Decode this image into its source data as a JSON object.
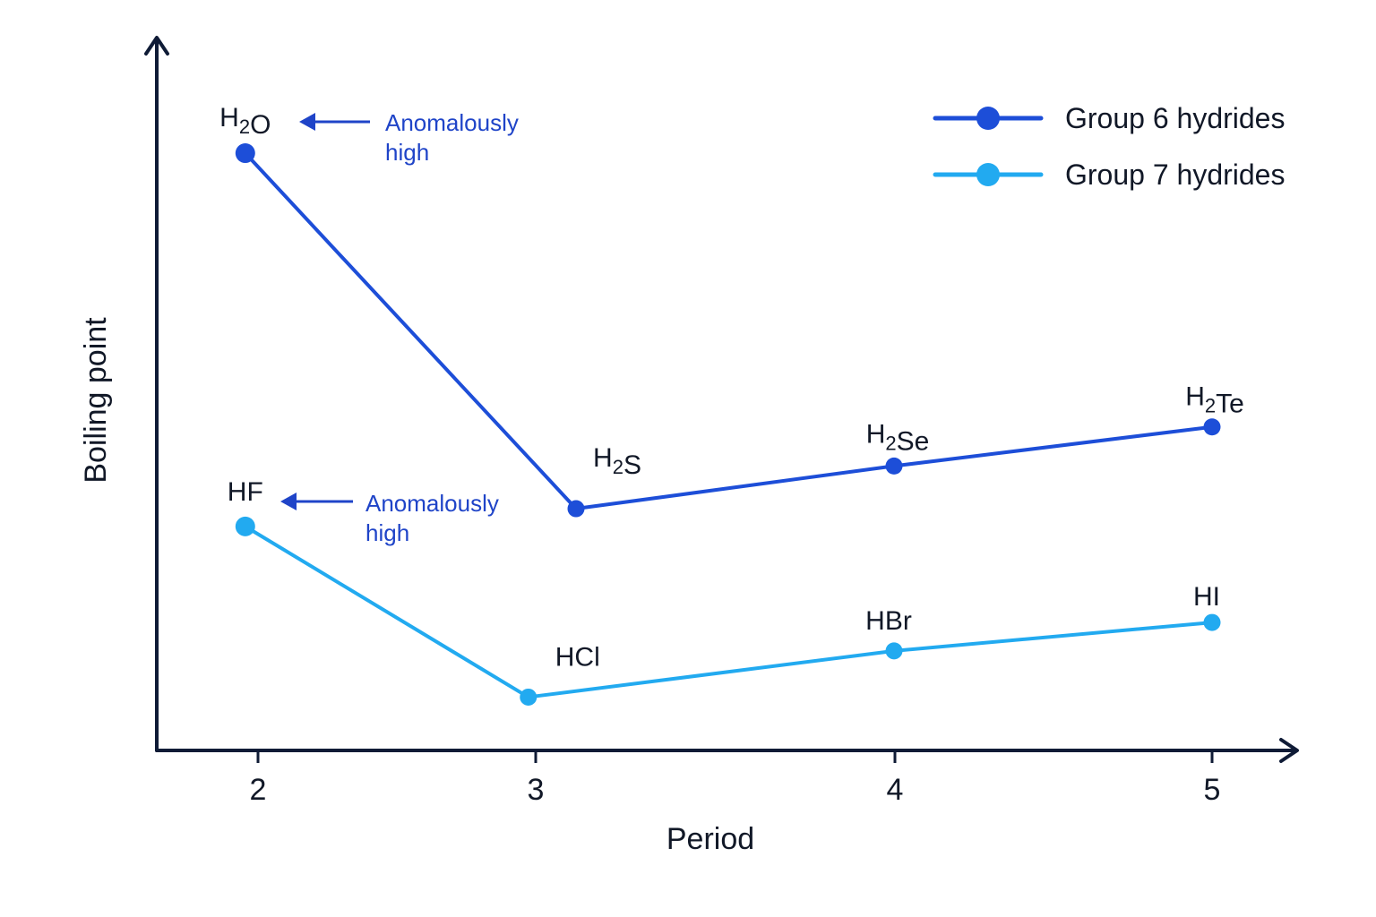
{
  "chart_data": {
    "type": "line",
    "xlabel": "Period",
    "ylabel": "Boiling point",
    "x_ticks": [
      "2",
      "3",
      "4",
      "5"
    ],
    "xlim": [
      1.65,
      5.3
    ],
    "ylim": [
      0,
      100
    ],
    "grid": false,
    "legend_position": "top-right",
    "series": [
      {
        "name": "Group 6 hydrides",
        "color": "#1d4ed8",
        "points": [
          {
            "x": 1.96,
            "y": 84,
            "label": "H2O"
          },
          {
            "x": 3.0,
            "y": 34,
            "label": "H2S"
          },
          {
            "x": 4.0,
            "y": 40,
            "label": "H2Se"
          },
          {
            "x": 5.0,
            "y": 45.5,
            "label": "H2Te"
          }
        ]
      },
      {
        "name": "Group 7 hydrides",
        "color": "#22aaf0",
        "points": [
          {
            "x": 1.96,
            "y": 31.5,
            "label": "HF"
          },
          {
            "x": 2.85,
            "y": 7.5,
            "label": "HCl"
          },
          {
            "x": 4.0,
            "y": 14,
            "label": "HBr"
          },
          {
            "x": 5.0,
            "y": 18,
            "label": "HI"
          }
        ]
      }
    ],
    "annotations": [
      {
        "text": [
          "Anomalously",
          "high"
        ],
        "target": "H2O"
      },
      {
        "text": [
          "Anomalously",
          "high"
        ],
        "target": "HF"
      }
    ]
  }
}
